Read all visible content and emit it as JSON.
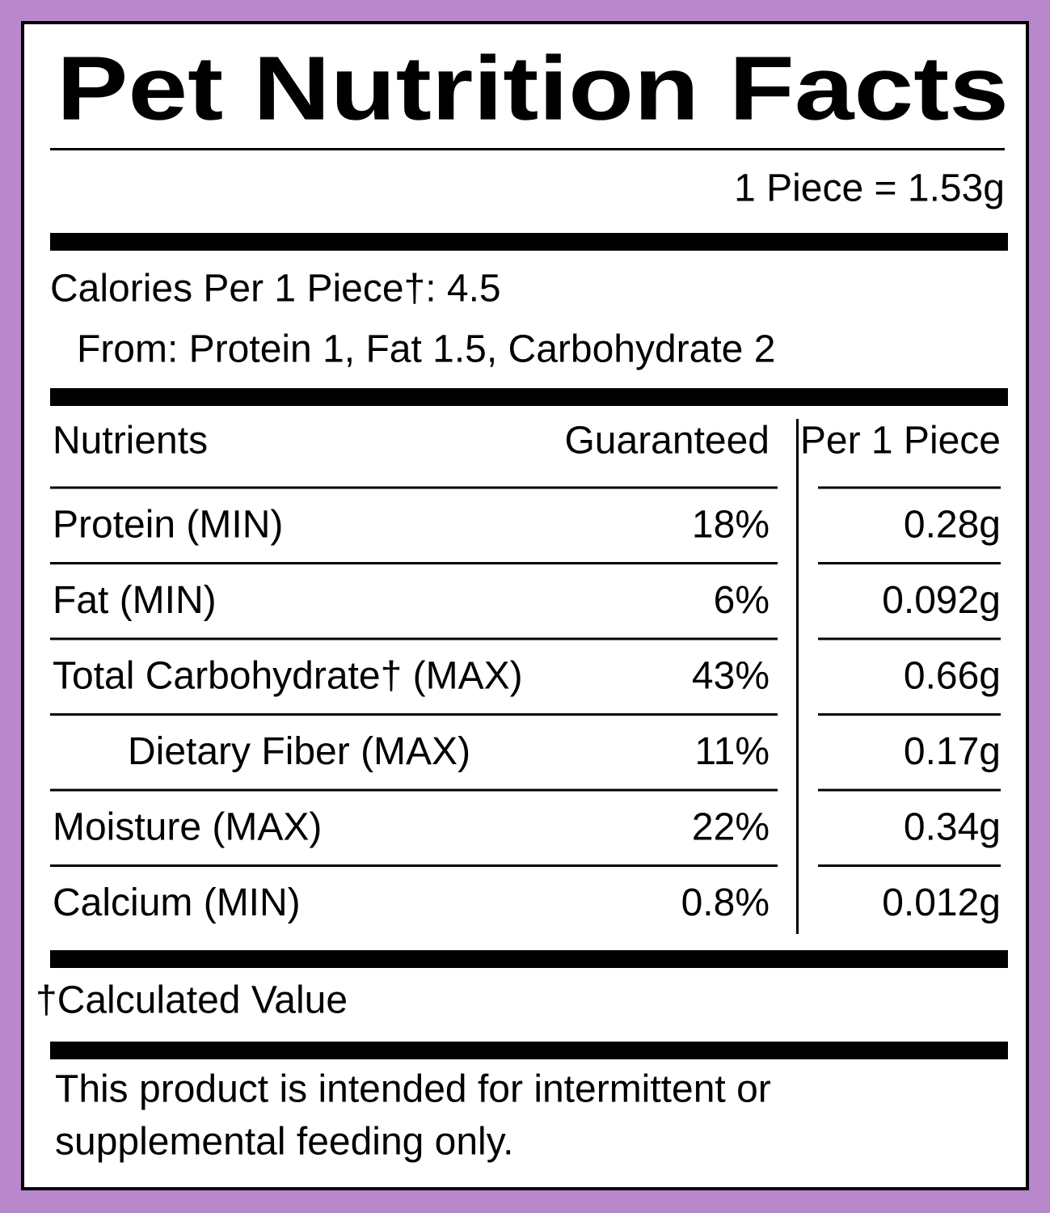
{
  "header": {
    "title": "Pet Nutrition Facts",
    "serving": "1 Piece = 1.53g"
  },
  "calories": {
    "line": "Calories Per 1 Piece†: 4.5",
    "from": "From: Protein 1, Fat 1.5, Carbohydrate 2"
  },
  "table": {
    "columns": [
      "Nutrients",
      "Guaranteed",
      "Per 1 Piece"
    ],
    "rows": [
      [
        "Protein (MIN)",
        "18%",
        "0.28g"
      ],
      [
        "Fat (MIN)",
        "6%",
        "0.092g"
      ],
      [
        "Total Carbohydrate† (MAX)",
        "43%",
        "0.66g"
      ],
      [
        "Dietary Fiber (MAX)",
        "11%",
        "0.17g"
      ],
      [
        "Moisture (MAX)",
        "22%",
        "0.34g"
      ],
      [
        "Calcium (MIN)",
        "0.8%",
        "0.012g"
      ]
    ]
  },
  "footnote": "†Calculated Value",
  "note": [
    "This product is intended for intermittent or",
    "supplemental feeding only."
  ]
}
